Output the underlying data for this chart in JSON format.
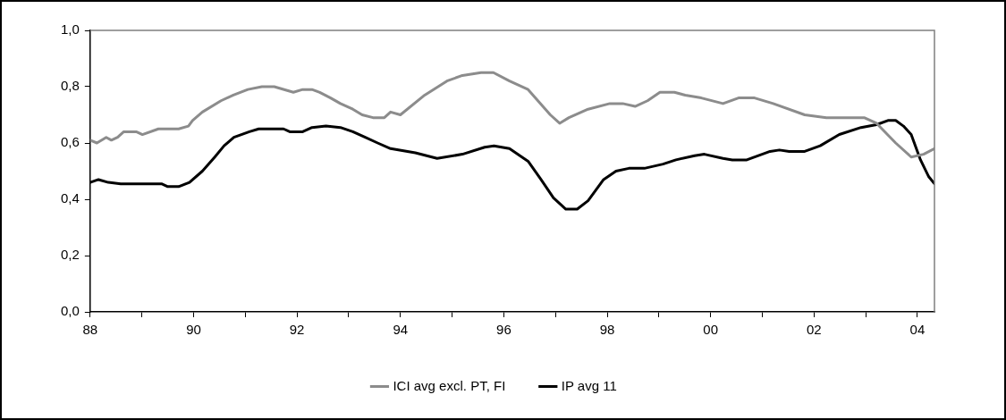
{
  "chart_data": {
    "type": "line",
    "xlim": [
      1988,
      2004.33
    ],
    "ylim": [
      0,
      1
    ],
    "xticks": [
      {
        "value": 1988,
        "label": "88"
      },
      {
        "value": 1989,
        "label": null
      },
      {
        "value": 1990,
        "label": "90"
      },
      {
        "value": 1991,
        "label": null
      },
      {
        "value": 1992,
        "label": "92"
      },
      {
        "value": 1993,
        "label": null
      },
      {
        "value": 1994,
        "label": "94"
      },
      {
        "value": 1995,
        "label": null
      },
      {
        "value": 1996,
        "label": "96"
      },
      {
        "value": 1997,
        "label": null
      },
      {
        "value": 1998,
        "label": "98"
      },
      {
        "value": 1999,
        "label": null
      },
      {
        "value": 2000,
        "label": "00"
      },
      {
        "value": 2001,
        "label": null
      },
      {
        "value": 2002,
        "label": "02"
      },
      {
        "value": 2003,
        "label": null
      },
      {
        "value": 2004,
        "label": "04"
      }
    ],
    "yticks": [
      {
        "value": 0,
        "label": "0,0"
      },
      {
        "value": 0.2,
        "label": "0,2"
      },
      {
        "value": 0.4,
        "label": "0,4"
      },
      {
        "value": 0.6,
        "label": "0,6"
      },
      {
        "value": 0.8,
        "label": "0,8"
      },
      {
        "value": 1,
        "label": "1,0"
      }
    ],
    "grid": false,
    "legend": "bottom",
    "marker": "none",
    "line_style": "solid",
    "series": [
      {
        "name": "ICI avg excl. PT, FI",
        "color": "#8c8c8c",
        "x": [
          1988,
          1988.13,
          1988.31,
          1988.41,
          1988.53,
          1988.65,
          1988.89,
          1989.01,
          1989.32,
          1989.71,
          1989.9,
          1989.98,
          1990.17,
          1990.53,
          1990.77,
          1991.05,
          1991.32,
          1991.56,
          1991.93,
          1992.11,
          1992.29,
          1992.44,
          1992.65,
          1992.84,
          1993.08,
          1993.26,
          1993.47,
          1993.69,
          1993.81,
          1994,
          1994.47,
          1994.9,
          1995.2,
          1995.56,
          1995.8,
          1996.11,
          1996.47,
          1996.66,
          1996.9,
          1997.08,
          1997.26,
          1997.63,
          1998.05,
          1998.3,
          1998.54,
          1998.78,
          1999.02,
          1999.3,
          1999.51,
          1999.82,
          2000.24,
          2000.54,
          2000.85,
          2001.21,
          2001.82,
          2002.24,
          2002.97,
          2003.21,
          2003.58,
          2003.88,
          2004.12,
          2004.33
        ],
        "values": [
          0.61,
          0.6,
          0.62,
          0.61,
          0.62,
          0.64,
          0.64,
          0.63,
          0.65,
          0.65,
          0.66,
          0.68,
          0.71,
          0.75,
          0.77,
          0.79,
          0.8,
          0.8,
          0.78,
          0.79,
          0.79,
          0.78,
          0.76,
          0.74,
          0.72,
          0.7,
          0.69,
          0.69,
          0.71,
          0.7,
          0.77,
          0.82,
          0.84,
          0.85,
          0.85,
          0.82,
          0.79,
          0.75,
          0.7,
          0.67,
          0.69,
          0.72,
          0.74,
          0.74,
          0.73,
          0.75,
          0.78,
          0.78,
          0.77,
          0.76,
          0.74,
          0.76,
          0.76,
          0.74,
          0.7,
          0.69,
          0.69,
          0.67,
          0.6,
          0.55,
          0.56,
          0.58
        ]
      },
      {
        "name": "IP avg 11",
        "color": "#000000",
        "x": [
          1988,
          1988.16,
          1988.35,
          1988.59,
          1989.38,
          1989.5,
          1989.71,
          1989.92,
          1990.17,
          1990.41,
          1990.59,
          1990.78,
          1991.08,
          1991.26,
          1991.74,
          1991.86,
          1992.11,
          1992.29,
          1992.56,
          1992.84,
          1993.08,
          1993.32,
          1993.56,
          1993.81,
          1994.29,
          1994.71,
          1995.2,
          1995.63,
          1995.81,
          1996.11,
          1996.47,
          1996.72,
          1996.96,
          1997.2,
          1997.42,
          1997.63,
          1997.93,
          1998.17,
          1998.42,
          1998.72,
          1999.08,
          1999.33,
          1999.69,
          1999.88,
          2000.24,
          2000.42,
          2000.7,
          2001.15,
          2001.33,
          2001.52,
          2001.82,
          2002.12,
          2002.49,
          2002.91,
          2003.21,
          2003.43,
          2003.58,
          2003.73,
          2003.88,
          2004.06,
          2004.22,
          2004.33
        ],
        "values": [
          0.46,
          0.47,
          0.46,
          0.455,
          0.455,
          0.445,
          0.445,
          0.46,
          0.5,
          0.55,
          0.59,
          0.62,
          0.64,
          0.65,
          0.65,
          0.64,
          0.64,
          0.655,
          0.66,
          0.655,
          0.64,
          0.62,
          0.6,
          0.58,
          0.565,
          0.545,
          0.56,
          0.585,
          0.59,
          0.58,
          0.535,
          0.47,
          0.405,
          0.365,
          0.365,
          0.395,
          0.47,
          0.5,
          0.51,
          0.51,
          0.525,
          0.54,
          0.555,
          0.56,
          0.545,
          0.54,
          0.54,
          0.57,
          0.575,
          0.57,
          0.57,
          0.59,
          0.63,
          0.655,
          0.665,
          0.68,
          0.68,
          0.66,
          0.63,
          0.54,
          0.48,
          0.455
        ]
      }
    ]
  }
}
